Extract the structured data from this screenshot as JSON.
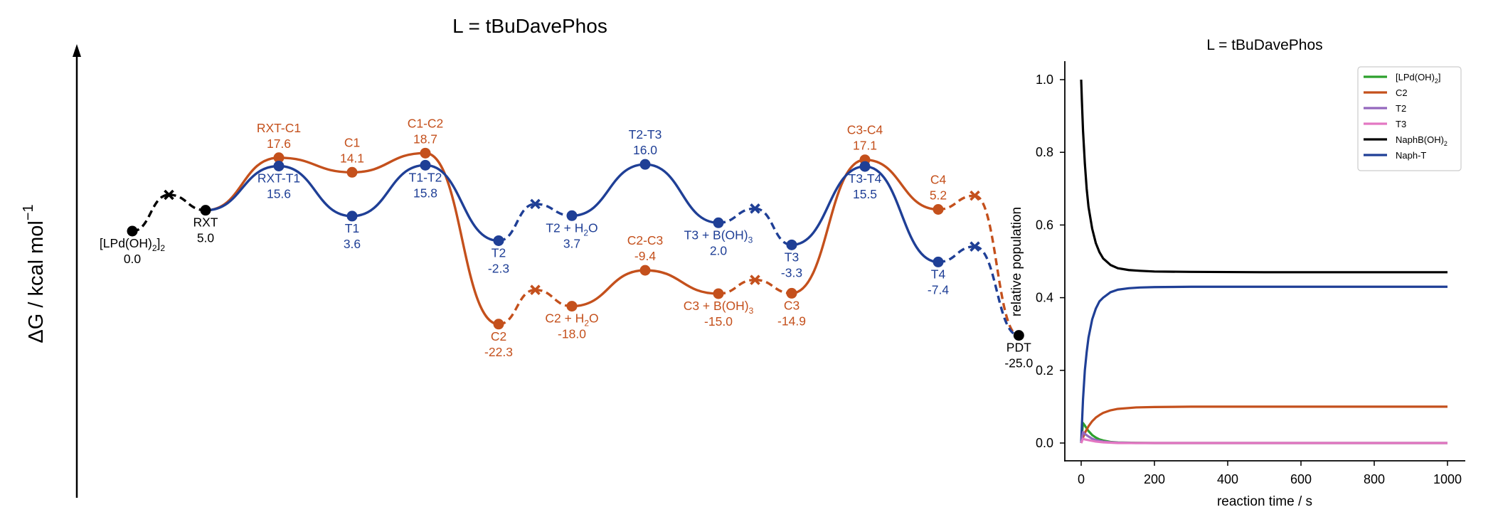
{
  "chart_data": [
    {
      "type": "line",
      "title": "L = tBuDavePhos",
      "ylabel": "ΔG / kcal mol",
      "ylabel_superscript": "−1",
      "ylim": [
        -30,
        22
      ],
      "grid": false,
      "legend": "none",
      "colors": {
        "orange": "#C4501C",
        "blue": "#1F3F96",
        "black": "#000000"
      },
      "points": [
        {
          "id": "LPdOH2",
          "x": 0,
          "y": 0.0,
          "name": "[LPd(OH)",
          "sub": "2",
          "tail": "]",
          "sub2": "2",
          "value": "0.0",
          "color": "black",
          "label_pos": "below"
        },
        {
          "id": "RXT",
          "x": 1,
          "y": 5.0,
          "name": "RXT",
          "value": "5.0",
          "color": "black",
          "label_pos": "below"
        },
        {
          "id": "RXT-C1",
          "x": 2,
          "y": 17.6,
          "name": "RXT-C1",
          "value": "17.6",
          "color": "orange",
          "label_pos": "above"
        },
        {
          "id": "RXT-T1",
          "x": 2,
          "y": 15.6,
          "name": "RXT-T1",
          "value": "15.6",
          "color": "blue",
          "label_pos": "below"
        },
        {
          "id": "C1",
          "x": 3,
          "y": 14.1,
          "name": "C1",
          "value": "14.1",
          "color": "orange",
          "label_pos": "above"
        },
        {
          "id": "T1",
          "x": 3,
          "y": 3.6,
          "name": "T1",
          "value": "3.6",
          "color": "blue",
          "label_pos": "below"
        },
        {
          "id": "C1-C2",
          "x": 4,
          "y": 18.7,
          "name": "C1-C2",
          "value": "18.7",
          "color": "orange",
          "label_pos": "above"
        },
        {
          "id": "T1-T2",
          "x": 4,
          "y": 15.8,
          "name": "T1-T2",
          "value": "15.8",
          "color": "blue",
          "label_pos": "below"
        },
        {
          "id": "T2",
          "x": 5,
          "y": -2.3,
          "name": "T2",
          "value": "-2.3",
          "color": "blue",
          "label_pos": "below"
        },
        {
          "id": "C2",
          "x": 5,
          "y": -22.3,
          "name": "C2",
          "value": "-22.3",
          "color": "orange",
          "label_pos": "below"
        },
        {
          "id": "T2H2O",
          "x": 6,
          "y": 3.7,
          "name": "T2 + H",
          "sub": "2",
          "tail": "O",
          "value": "3.7",
          "color": "blue",
          "label_pos": "below"
        },
        {
          "id": "C2H2O",
          "x": 6,
          "y": -18.0,
          "name": "C2 + H",
          "sub": "2",
          "tail": "O",
          "value": "-18.0",
          "color": "orange",
          "label_pos": "below"
        },
        {
          "id": "T2-T3",
          "x": 7,
          "y": 16.0,
          "name": "T2-T3",
          "value": "16.0",
          "color": "blue",
          "label_pos": "above"
        },
        {
          "id": "C2-C3",
          "x": 7,
          "y": -9.4,
          "name": "C2-C3",
          "value": "-9.4",
          "color": "orange",
          "label_pos": "above"
        },
        {
          "id": "T3BOH3",
          "x": 8,
          "y": 2.0,
          "name": "T3 + B(OH)",
          "sub": "3",
          "value": "2.0",
          "color": "blue",
          "label_pos": "below"
        },
        {
          "id": "C3BOH3",
          "x": 8,
          "y": -15.0,
          "name": "C3 + B(OH)",
          "sub": "3",
          "value": "-15.0",
          "color": "orange",
          "label_pos": "below"
        },
        {
          "id": "T3",
          "x": 9,
          "y": -3.3,
          "name": "T3",
          "value": "-3.3",
          "color": "blue",
          "label_pos": "below"
        },
        {
          "id": "C3",
          "x": 9,
          "y": -14.9,
          "name": "C3",
          "value": "-14.9",
          "color": "orange",
          "label_pos": "below"
        },
        {
          "id": "C3-C4",
          "x": 10,
          "y": 17.1,
          "name": "C3-C4",
          "value": "17.1",
          "color": "orange",
          "label_pos": "above"
        },
        {
          "id": "T3-T4",
          "x": 10,
          "y": 15.5,
          "name": "T3-T4",
          "value": "15.5",
          "color": "blue",
          "label_pos": "below"
        },
        {
          "id": "C4",
          "x": 11,
          "y": 5.2,
          "name": "C4",
          "value": "5.2",
          "color": "orange",
          "label_pos": "above"
        },
        {
          "id": "T4",
          "x": 11,
          "y": -7.4,
          "name": "T4",
          "value": "-7.4",
          "color": "blue",
          "label_pos": "below"
        },
        {
          "id": "PDT",
          "x": 12.1,
          "y": -25.0,
          "name": "PDT",
          "value": "-25.0",
          "color": "black",
          "label_pos": "below"
        }
      ],
      "crosses": [
        {
          "id": "X1",
          "x": 0.5,
          "y": 8.7,
          "color": "black"
        },
        {
          "id": "XT1",
          "x": 5.5,
          "y": 6.5,
          "color": "blue"
        },
        {
          "id": "XC1",
          "x": 5.5,
          "y": -14.1,
          "color": "orange"
        },
        {
          "id": "XT2",
          "x": 8.5,
          "y": 5.4,
          "color": "blue"
        },
        {
          "id": "XC2",
          "x": 8.5,
          "y": -11.7,
          "color": "orange"
        },
        {
          "id": "XC3",
          "x": 11.5,
          "y": 8.5,
          "color": "orange"
        },
        {
          "id": "XT3",
          "x": 11.5,
          "y": -3.7,
          "color": "blue"
        }
      ],
      "segments": [
        {
          "from": "LPdOH2",
          "to": "X1",
          "style": "dashed",
          "color": "black"
        },
        {
          "from": "X1",
          "to": "RXT",
          "style": "dashed",
          "color": "black"
        },
        {
          "from": "RXT",
          "to": "RXT-C1",
          "style": "solid",
          "color": "orange"
        },
        {
          "from": "RXT-C1",
          "to": "C1",
          "style": "solid",
          "color": "orange"
        },
        {
          "from": "C1",
          "to": "C1-C2",
          "style": "solid",
          "color": "orange"
        },
        {
          "from": "C1-C2",
          "to": "C2",
          "style": "solid",
          "color": "orange"
        },
        {
          "from": "C2",
          "to": "XC1",
          "style": "dashed",
          "color": "orange"
        },
        {
          "from": "XC1",
          "to": "C2H2O",
          "style": "dashed",
          "color": "orange"
        },
        {
          "from": "C2H2O",
          "to": "C2-C3",
          "style": "solid",
          "color": "orange"
        },
        {
          "from": "C2-C3",
          "to": "C3BOH3",
          "style": "solid",
          "color": "orange"
        },
        {
          "from": "C3BOH3",
          "to": "XC2",
          "style": "dashed",
          "color": "orange"
        },
        {
          "from": "XC2",
          "to": "C3",
          "style": "dashed",
          "color": "orange"
        },
        {
          "from": "C3",
          "to": "C3-C4",
          "style": "solid",
          "color": "orange"
        },
        {
          "from": "C3-C4",
          "to": "C4",
          "style": "solid",
          "color": "orange"
        },
        {
          "from": "C4",
          "to": "XC3",
          "style": "dashed",
          "color": "orange"
        },
        {
          "from": "XC3",
          "to": "PDT",
          "style": "dashed",
          "color": "orange"
        },
        {
          "from": "RXT",
          "to": "RXT-T1",
          "style": "solid",
          "color": "blue"
        },
        {
          "from": "RXT-T1",
          "to": "T1",
          "style": "solid",
          "color": "blue"
        },
        {
          "from": "T1",
          "to": "T1-T2",
          "style": "solid",
          "color": "blue"
        },
        {
          "from": "T1-T2",
          "to": "T2",
          "style": "solid",
          "color": "blue"
        },
        {
          "from": "T2",
          "to": "XT1",
          "style": "dashed",
          "color": "blue"
        },
        {
          "from": "XT1",
          "to": "T2H2O",
          "style": "dashed",
          "color": "blue"
        },
        {
          "from": "T2H2O",
          "to": "T2-T3",
          "style": "solid",
          "color": "blue"
        },
        {
          "from": "T2-T3",
          "to": "T3BOH3",
          "style": "solid",
          "color": "blue"
        },
        {
          "from": "T3BOH3",
          "to": "XT2",
          "style": "dashed",
          "color": "blue"
        },
        {
          "from": "XT2",
          "to": "T3",
          "style": "dashed",
          "color": "blue"
        },
        {
          "from": "T3",
          "to": "T3-T4",
          "style": "solid",
          "color": "blue"
        },
        {
          "from": "T3-T4",
          "to": "T4",
          "style": "solid",
          "color": "blue"
        },
        {
          "from": "T4",
          "to": "XT3",
          "style": "dashed",
          "color": "blue"
        },
        {
          "from": "XT3",
          "to": "PDT",
          "style": "dashed",
          "color": "blue"
        }
      ]
    },
    {
      "type": "line",
      "title": "L = tBuDavePhos",
      "xlabel": "reaction time / s",
      "ylabel": "relative population",
      "xlim": [
        -40,
        1050
      ],
      "ylim": [
        -0.05,
        1.05
      ],
      "xticks": [
        0,
        200,
        400,
        600,
        800,
        1000
      ],
      "xtick_labels": [
        "0",
        "200",
        "400",
        "600",
        "800",
        "1000"
      ],
      "yticks": [
        0.0,
        0.2,
        0.4,
        0.6,
        0.8,
        1.0
      ],
      "ytick_labels": [
        "0.0",
        "0.2",
        "0.4",
        "0.6",
        "0.8",
        "1.0"
      ],
      "grid": false,
      "legend": "top-right",
      "series": [
        {
          "name": "[LPd(OH)",
          "name_sub": "2",
          "name_tail": "]",
          "color": "#2CA02C",
          "x": [
            0,
            5,
            10,
            15,
            20,
            30,
            40,
            50,
            60,
            80,
            100,
            150,
            200,
            300,
            500,
            1000
          ],
          "y": [
            0.0,
            0.055,
            0.048,
            0.04,
            0.033,
            0.022,
            0.015,
            0.01,
            0.007,
            0.003,
            0.0015,
            0.0005,
            0.0,
            0.0,
            0.0,
            0.0
          ]
        },
        {
          "name": "C2",
          "color": "#C4501C",
          "x": [
            0,
            5,
            10,
            20,
            30,
            40,
            50,
            60,
            80,
            100,
            150,
            200,
            300,
            500,
            1000
          ],
          "y": [
            0.0,
            0.015,
            0.028,
            0.046,
            0.06,
            0.07,
            0.077,
            0.083,
            0.09,
            0.094,
            0.098,
            0.099,
            0.1,
            0.1,
            0.1
          ]
        },
        {
          "name": "T2",
          "color": "#9467BD",
          "x": [
            0,
            5,
            10,
            20,
            30,
            40,
            60,
            80,
            100,
            150,
            1000
          ],
          "y": [
            0.0,
            0.03,
            0.025,
            0.018,
            0.012,
            0.008,
            0.004,
            0.002,
            0.001,
            0.0,
            0.0
          ]
        },
        {
          "name": "T3",
          "color": "#E377C2",
          "x": [
            0,
            5,
            10,
            20,
            30,
            40,
            60,
            80,
            100,
            150,
            1000
          ],
          "y": [
            0.0,
            0.012,
            0.01,
            0.008,
            0.006,
            0.004,
            0.002,
            0.001,
            0.0,
            0.0,
            0.0
          ]
        },
        {
          "name": "NaphB(OH)",
          "name_sub": "2",
          "color": "#000000",
          "x": [
            0,
            2,
            5,
            10,
            15,
            20,
            30,
            40,
            50,
            60,
            80,
            100,
            130,
            160,
            200,
            300,
            500,
            1000
          ],
          "y": [
            1.0,
            0.94,
            0.86,
            0.77,
            0.7,
            0.65,
            0.59,
            0.55,
            0.525,
            0.508,
            0.49,
            0.481,
            0.476,
            0.474,
            0.472,
            0.471,
            0.47,
            0.47
          ]
        },
        {
          "name": "Naph-T",
          "color": "#1F3F96",
          "x": [
            0,
            2,
            5,
            10,
            15,
            20,
            30,
            40,
            50,
            60,
            80,
            100,
            130,
            160,
            200,
            300,
            500,
            1000
          ],
          "y": [
            0.0,
            0.05,
            0.12,
            0.2,
            0.25,
            0.29,
            0.34,
            0.37,
            0.39,
            0.4,
            0.415,
            0.422,
            0.426,
            0.428,
            0.429,
            0.43,
            0.43,
            0.43
          ]
        }
      ]
    }
  ]
}
